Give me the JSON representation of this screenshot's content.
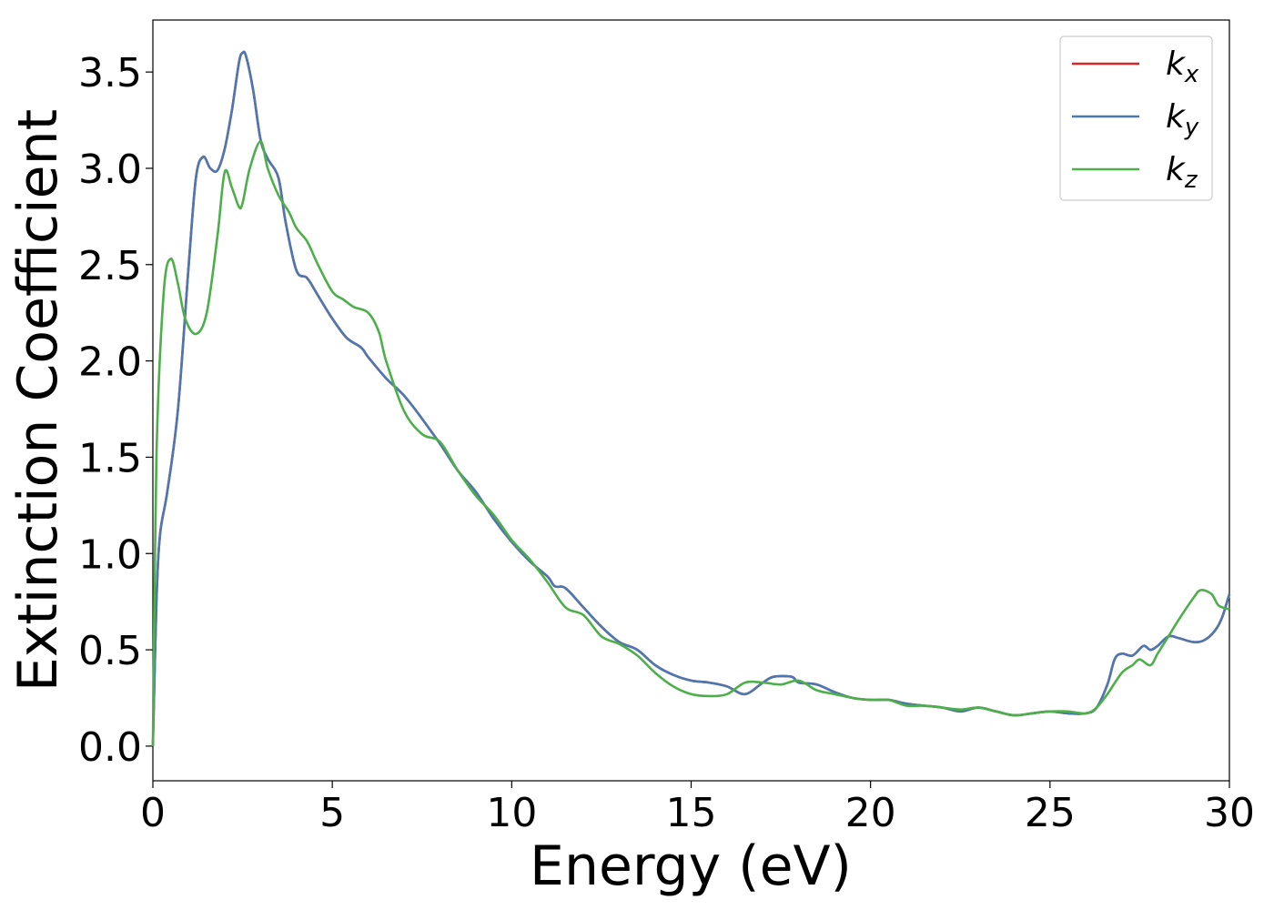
{
  "chart_data": {
    "type": "line",
    "xlabel": "Energy (eV)",
    "ylabel": "Extinction Coefficient",
    "xlim": [
      0,
      30
    ],
    "ylim": [
      -0.18,
      3.77
    ],
    "xticks": [
      0,
      5,
      10,
      15,
      20,
      25,
      30
    ],
    "xtick_labels": [
      "0",
      "5",
      "10",
      "15",
      "20",
      "25",
      "30"
    ],
    "yticks": [
      0.0,
      0.5,
      1.0,
      1.5,
      2.0,
      2.5,
      3.0,
      3.5
    ],
    "ytick_labels": [
      "0.0",
      "0.5",
      "1.0",
      "1.5",
      "2.0",
      "2.5",
      "3.0",
      "3.5"
    ],
    "grid": false,
    "legend_position": "top-right",
    "series": [
      {
        "name": "k",
        "subscript": "x",
        "color": "#d62728",
        "x": [
          0,
          0.1,
          0.2,
          0.4,
          0.7,
          1.0,
          1.2,
          1.4,
          1.6,
          1.8,
          2.0,
          2.2,
          2.4,
          2.5,
          2.6,
          2.8,
          3.0,
          3.2,
          3.5,
          3.7,
          4.0,
          4.3,
          4.6,
          5.0,
          5.4,
          5.8,
          6.0,
          6.5,
          7.0,
          7.5,
          8.0,
          8.5,
          9.0,
          9.5,
          10.0,
          10.5,
          11.0,
          11.2,
          11.5,
          12.0,
          12.5,
          13.0,
          13.5,
          14.0,
          14.5,
          15.0,
          15.5,
          16.0,
          16.5,
          17.0,
          17.3,
          17.8,
          18.0,
          18.5,
          19.0,
          19.5,
          20.0,
          20.5,
          21.0,
          21.5,
          22.0,
          22.5,
          23.0,
          23.5,
          24.0,
          24.5,
          25.0,
          25.5,
          26.0,
          26.3,
          26.6,
          26.8,
          27.0,
          27.3,
          27.6,
          27.8,
          28.0,
          28.3,
          28.6,
          29.0,
          29.3,
          29.6,
          29.8,
          30.0
        ],
        "y": [
          0.0,
          0.75,
          1.1,
          1.32,
          1.75,
          2.5,
          2.95,
          3.06,
          3.0,
          2.99,
          3.1,
          3.3,
          3.55,
          3.6,
          3.58,
          3.4,
          3.15,
          3.05,
          2.95,
          2.72,
          2.47,
          2.43,
          2.34,
          2.22,
          2.12,
          2.07,
          2.02,
          1.91,
          1.82,
          1.7,
          1.57,
          1.43,
          1.32,
          1.18,
          1.06,
          0.96,
          0.88,
          0.83,
          0.82,
          0.72,
          0.62,
          0.54,
          0.5,
          0.42,
          0.37,
          0.34,
          0.33,
          0.31,
          0.27,
          0.33,
          0.36,
          0.36,
          0.33,
          0.32,
          0.28,
          0.25,
          0.24,
          0.24,
          0.22,
          0.21,
          0.2,
          0.18,
          0.2,
          0.18,
          0.16,
          0.17,
          0.18,
          0.17,
          0.17,
          0.2,
          0.32,
          0.45,
          0.48,
          0.47,
          0.52,
          0.5,
          0.52,
          0.57,
          0.56,
          0.54,
          0.55,
          0.6,
          0.67,
          0.79
        ]
      },
      {
        "name": "k",
        "subscript": "y",
        "color": "#4c78b2",
        "x": [
          0,
          0.1,
          0.2,
          0.4,
          0.7,
          1.0,
          1.2,
          1.4,
          1.6,
          1.8,
          2.0,
          2.2,
          2.4,
          2.5,
          2.6,
          2.8,
          3.0,
          3.2,
          3.5,
          3.7,
          4.0,
          4.3,
          4.6,
          5.0,
          5.4,
          5.8,
          6.0,
          6.5,
          7.0,
          7.5,
          8.0,
          8.5,
          9.0,
          9.5,
          10.0,
          10.5,
          11.0,
          11.2,
          11.5,
          12.0,
          12.5,
          13.0,
          13.5,
          14.0,
          14.5,
          15.0,
          15.5,
          16.0,
          16.5,
          17.0,
          17.3,
          17.8,
          18.0,
          18.5,
          19.0,
          19.5,
          20.0,
          20.5,
          21.0,
          21.5,
          22.0,
          22.5,
          23.0,
          23.5,
          24.0,
          24.5,
          25.0,
          25.5,
          26.0,
          26.3,
          26.6,
          26.8,
          27.0,
          27.3,
          27.6,
          27.8,
          28.0,
          28.3,
          28.6,
          29.0,
          29.3,
          29.6,
          29.8,
          30.0
        ],
        "y": [
          0.0,
          0.75,
          1.1,
          1.32,
          1.75,
          2.5,
          2.95,
          3.06,
          3.0,
          2.99,
          3.1,
          3.3,
          3.55,
          3.6,
          3.58,
          3.4,
          3.15,
          3.05,
          2.95,
          2.72,
          2.47,
          2.43,
          2.34,
          2.22,
          2.12,
          2.07,
          2.02,
          1.91,
          1.82,
          1.7,
          1.57,
          1.43,
          1.32,
          1.18,
          1.06,
          0.96,
          0.88,
          0.83,
          0.82,
          0.72,
          0.62,
          0.54,
          0.5,
          0.42,
          0.37,
          0.34,
          0.33,
          0.31,
          0.27,
          0.33,
          0.36,
          0.36,
          0.33,
          0.32,
          0.28,
          0.25,
          0.24,
          0.24,
          0.22,
          0.21,
          0.2,
          0.18,
          0.2,
          0.18,
          0.16,
          0.17,
          0.18,
          0.17,
          0.17,
          0.2,
          0.32,
          0.45,
          0.48,
          0.47,
          0.52,
          0.5,
          0.52,
          0.57,
          0.56,
          0.54,
          0.55,
          0.6,
          0.67,
          0.79
        ]
      },
      {
        "name": "k",
        "subscript": "z",
        "color": "#4daf4a",
        "x": [
          0,
          0.1,
          0.3,
          0.5,
          0.7,
          0.9,
          1.2,
          1.5,
          1.8,
          2.0,
          2.2,
          2.4,
          2.5,
          2.7,
          3.0,
          3.2,
          3.5,
          3.8,
          4.0,
          4.3,
          4.6,
          5.0,
          5.3,
          5.6,
          6.0,
          6.3,
          6.5,
          7.0,
          7.5,
          8.0,
          8.5,
          9.0,
          9.5,
          10.0,
          10.5,
          11.0,
          11.5,
          12.0,
          12.5,
          13.0,
          13.5,
          14.0,
          14.5,
          15.0,
          15.5,
          16.0,
          16.5,
          17.0,
          17.5,
          18.0,
          18.5,
          19.0,
          19.5,
          20.0,
          20.5,
          21.0,
          21.5,
          22.0,
          22.5,
          23.0,
          23.5,
          24.0,
          24.5,
          25.0,
          25.5,
          26.0,
          26.3,
          26.6,
          27.0,
          27.3,
          27.5,
          27.8,
          28.0,
          28.3,
          28.6,
          29.0,
          29.2,
          29.5,
          29.7,
          30.0
        ],
        "y": [
          0.0,
          1.5,
          2.35,
          2.53,
          2.4,
          2.22,
          2.14,
          2.25,
          2.65,
          2.98,
          2.9,
          2.8,
          2.82,
          3.0,
          3.14,
          3.0,
          2.86,
          2.77,
          2.69,
          2.62,
          2.5,
          2.36,
          2.32,
          2.28,
          2.25,
          2.15,
          2.0,
          1.74,
          1.62,
          1.58,
          1.43,
          1.3,
          1.2,
          1.07,
          0.97,
          0.85,
          0.72,
          0.68,
          0.57,
          0.53,
          0.47,
          0.38,
          0.31,
          0.27,
          0.26,
          0.27,
          0.33,
          0.33,
          0.32,
          0.34,
          0.29,
          0.27,
          0.25,
          0.24,
          0.24,
          0.21,
          0.21,
          0.2,
          0.19,
          0.2,
          0.18,
          0.16,
          0.17,
          0.18,
          0.18,
          0.17,
          0.2,
          0.27,
          0.38,
          0.42,
          0.45,
          0.42,
          0.48,
          0.57,
          0.66,
          0.77,
          0.81,
          0.79,
          0.73,
          0.71
        ]
      }
    ]
  }
}
